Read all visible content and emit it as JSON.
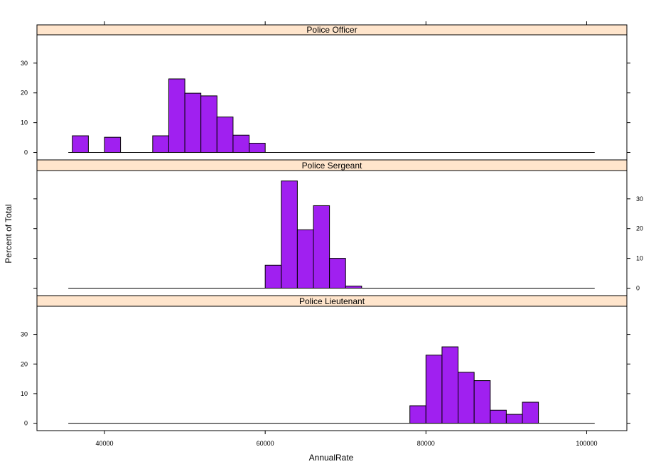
{
  "chart_data": {
    "type": "bar",
    "layout": "lattice histogram, 3 stacked panels sharing x axis",
    "xlabel": "AnnualRate",
    "ylabel": "Percent of Total",
    "xlim": [
      31600,
      105000
    ],
    "ylim": [
      -2.5,
      39.5
    ],
    "x_ticks": [
      40000,
      60000,
      80000,
      100000
    ],
    "y_ticks": [
      0,
      10,
      20,
      30
    ],
    "bar_color": "#a020f0",
    "strip_color": "#ffe5cc",
    "baseline_range": [
      35500,
      101000
    ],
    "panels": [
      {
        "name": "Police Officer",
        "bins": [
          {
            "x0": 36000,
            "x1": 38000,
            "value": 5.6
          },
          {
            "x0": 40000,
            "x1": 42000,
            "value": 5.1
          },
          {
            "x0": 46000,
            "x1": 48000,
            "value": 5.6
          },
          {
            "x0": 48000,
            "x1": 50000,
            "value": 24.7
          },
          {
            "x0": 50000,
            "x1": 52000,
            "value": 19.9
          },
          {
            "x0": 52000,
            "x1": 54000,
            "value": 19.0
          },
          {
            "x0": 54000,
            "x1": 56000,
            "value": 11.9
          },
          {
            "x0": 56000,
            "x1": 58000,
            "value": 5.8
          },
          {
            "x0": 58000,
            "x1": 60000,
            "value": 3.1
          }
        ]
      },
      {
        "name": "Police Sergeant",
        "bins": [
          {
            "x0": 60000,
            "x1": 62000,
            "value": 7.7
          },
          {
            "x0": 62000,
            "x1": 64000,
            "value": 36.0
          },
          {
            "x0": 64000,
            "x1": 66000,
            "value": 19.6
          },
          {
            "x0": 66000,
            "x1": 68000,
            "value": 27.7
          },
          {
            "x0": 68000,
            "x1": 70000,
            "value": 10.0
          },
          {
            "x0": 70000,
            "x1": 72000,
            "value": 0.7
          }
        ]
      },
      {
        "name": "Police Lieutenant",
        "bins": [
          {
            "x0": 78000,
            "x1": 80000,
            "value": 5.9
          },
          {
            "x0": 80000,
            "x1": 82000,
            "value": 23.0
          },
          {
            "x0": 82000,
            "x1": 84000,
            "value": 25.8
          },
          {
            "x0": 84000,
            "x1": 86000,
            "value": 17.2
          },
          {
            "x0": 86000,
            "x1": 88000,
            "value": 14.4
          },
          {
            "x0": 88000,
            "x1": 90000,
            "value": 4.4
          },
          {
            "x0": 90000,
            "x1": 92000,
            "value": 3.0
          },
          {
            "x0": 92000,
            "x1": 94000,
            "value": 7.1
          }
        ]
      }
    ]
  }
}
